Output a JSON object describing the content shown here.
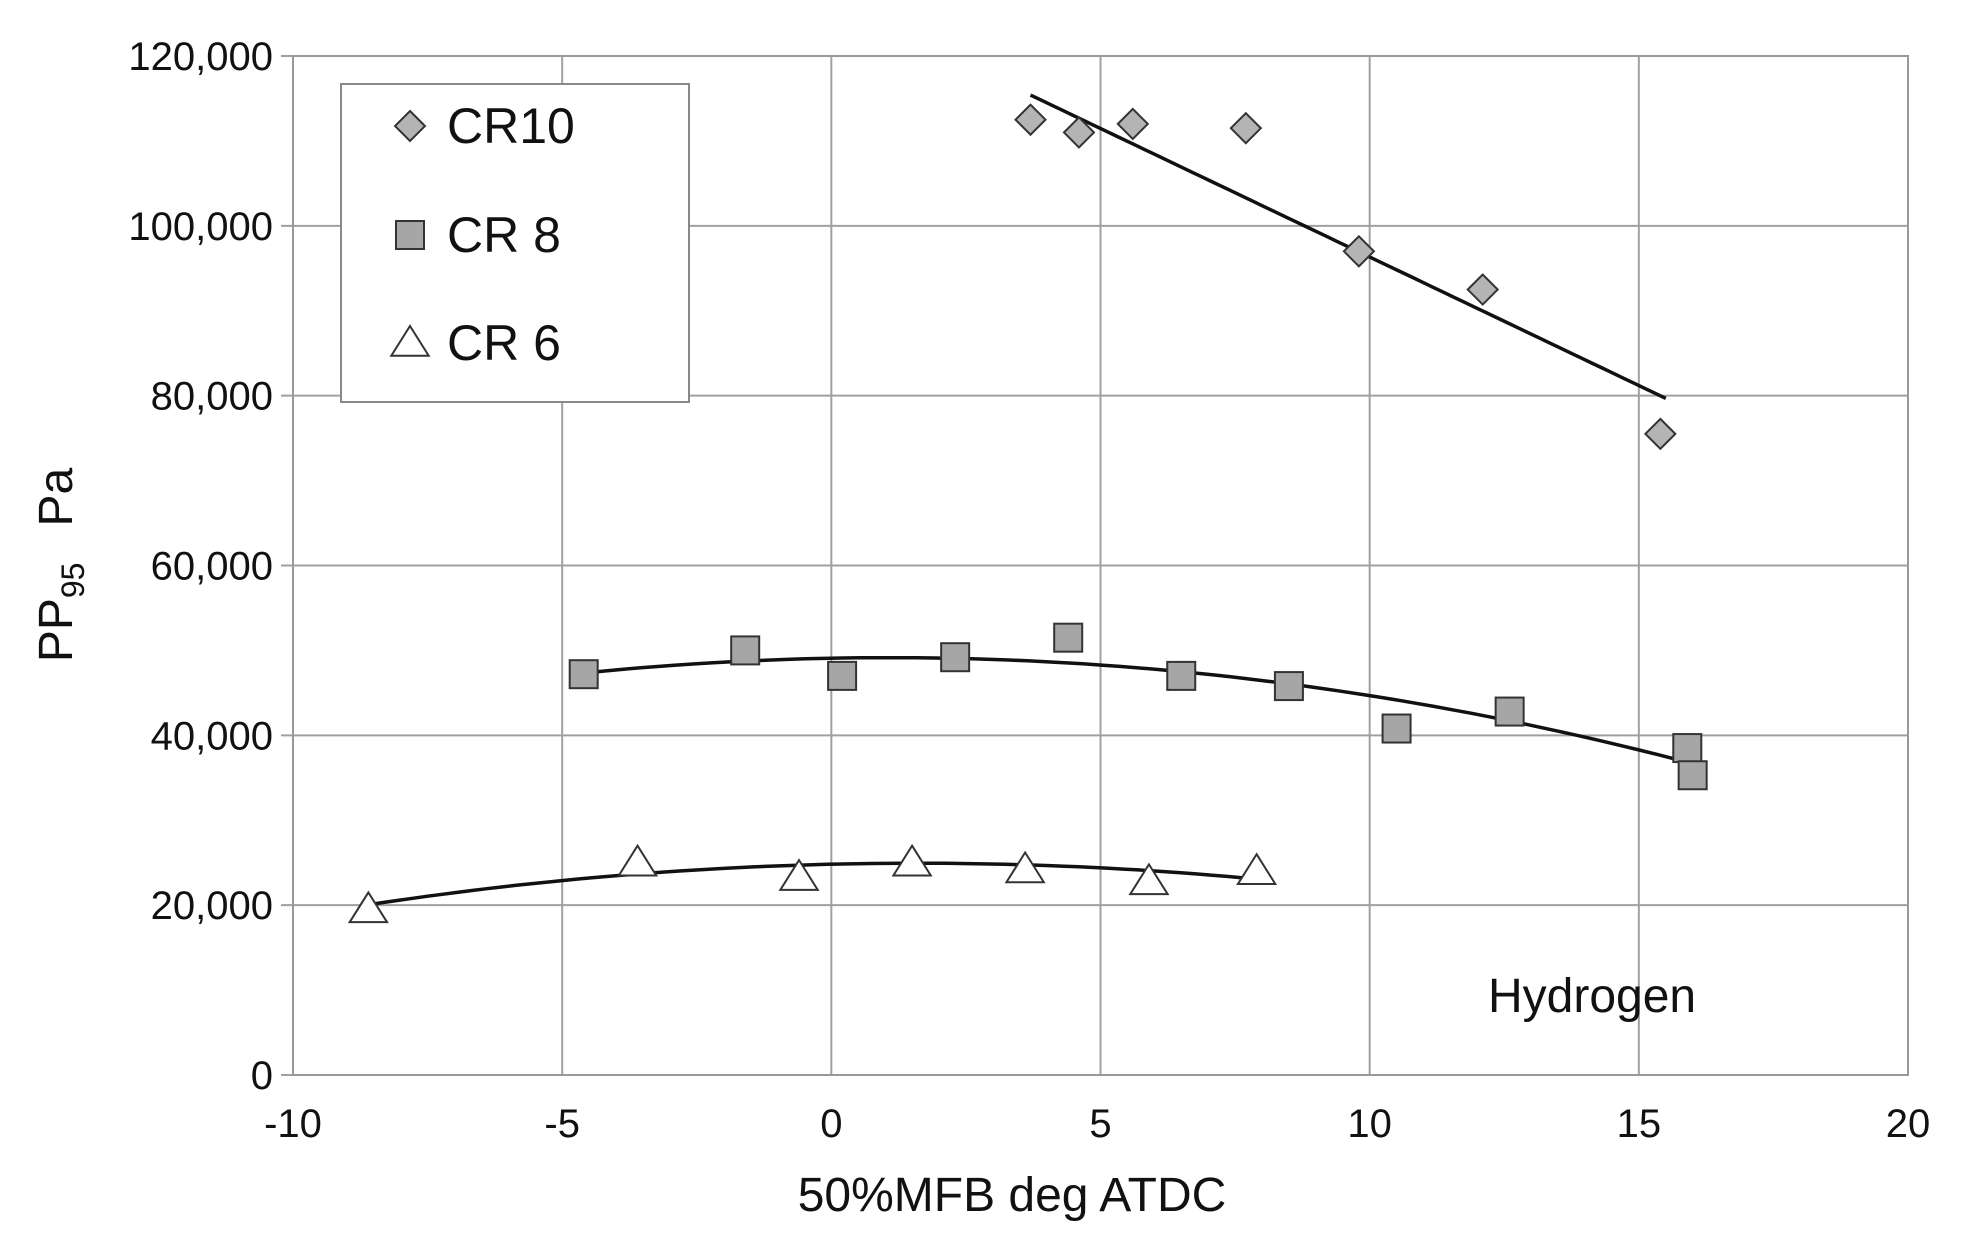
{
  "chart_data": {
    "type": "scatter",
    "title": "",
    "xlabel": "50%MFB deg ATDC",
    "ylabel": {
      "main": "PP",
      "subscript": "95",
      "unit": "Pa"
    },
    "xlim": [
      -10,
      20
    ],
    "ylim": [
      0,
      120000
    ],
    "x_ticks": [
      -10,
      -5,
      0,
      5,
      10,
      15,
      20
    ],
    "y_ticks": [
      0,
      20000,
      40000,
      60000,
      80000,
      100000,
      120000
    ],
    "x_tick_labels": [
      "-10",
      "-5",
      "0",
      "5",
      "10",
      "15",
      "20"
    ],
    "y_tick_labels": [
      "0",
      "20,000",
      "40,000",
      "60,000",
      "80,000",
      "100,000",
      "120,000"
    ],
    "grid": true,
    "legend_position": "top-left",
    "annotation": "Hydrogen",
    "series": [
      {
        "name": "CR10",
        "marker": "diamond",
        "color": "#b4b4b4",
        "x": [
          3.7,
          4.6,
          5.6,
          7.7,
          9.8,
          12.1,
          15.4
        ],
        "y": [
          112500,
          111000,
          112000,
          111500,
          97000,
          92500,
          75500
        ],
        "fit": {
          "kind": "linear",
          "x_range": [
            3.7,
            15.5
          ],
          "coeffs": [
            126600,
            -3027
          ]
        }
      },
      {
        "name": "CR 8",
        "marker": "square",
        "color": "#a6a6a6",
        "x": [
          -4.6,
          -1.6,
          0.2,
          2.3,
          4.4,
          6.5,
          8.5,
          10.5,
          12.6,
          15.9,
          16.0
        ],
        "y": [
          47200,
          50000,
          47000,
          49200,
          51500,
          47000,
          45800,
          40800,
          42800,
          38500,
          35300
        ],
        "fit": {
          "kind": "quadratic",
          "x_range": [
            -4.6,
            16.0
          ],
          "coeffs": [
            49080,
            120,
            -56
          ]
        }
      },
      {
        "name": "CR 6",
        "marker": "triangle",
        "color": "#ffffff",
        "x": [
          -8.6,
          -3.6,
          -0.6,
          1.5,
          3.6,
          5.9,
          7.9
        ],
        "y": [
          19500,
          25000,
          23300,
          25000,
          24200,
          22800,
          24000
        ],
        "fit": {
          "kind": "quadratic",
          "x_range": [
            -8.6,
            7.9
          ],
          "coeffs": [
            24820,
            150,
            -47
          ]
        }
      }
    ]
  }
}
